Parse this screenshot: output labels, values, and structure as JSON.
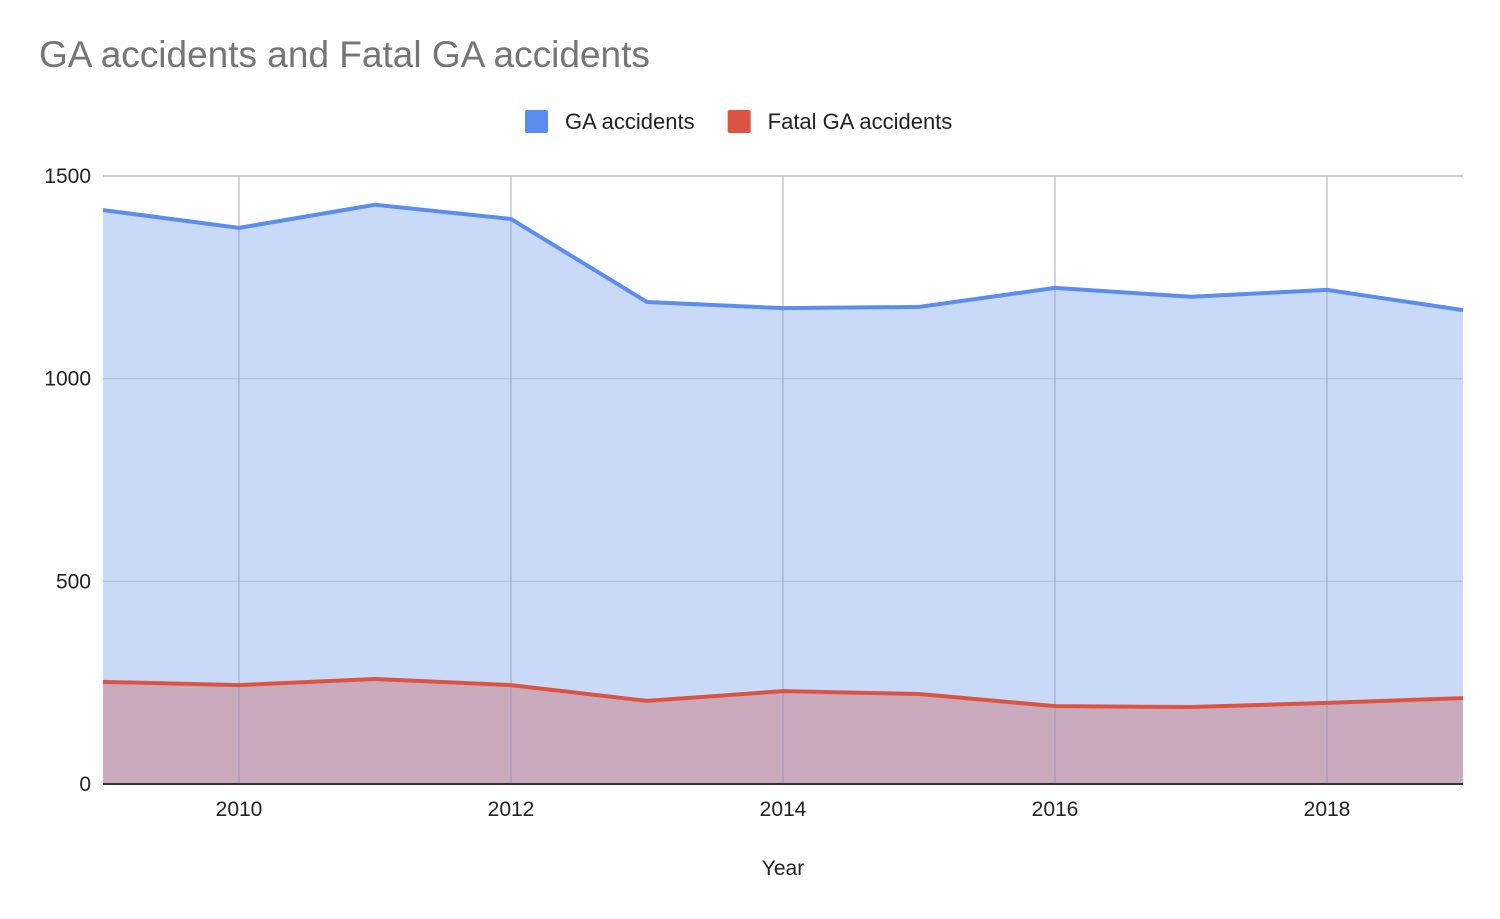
{
  "chart_data": {
    "type": "area",
    "title": "GA accidents and Fatal GA accidents",
    "xlabel": "Year",
    "ylabel": "",
    "x": [
      2009,
      2010,
      2011,
      2012,
      2013,
      2014,
      2015,
      2016,
      2017,
      2018,
      2019
    ],
    "xlim": [
      2009,
      2019
    ],
    "ylim": [
      0,
      1500
    ],
    "xticks": [
      "2010",
      "2012",
      "2014",
      "2016",
      "2018"
    ],
    "yticks": [
      "0",
      "500",
      "1000",
      "1500"
    ],
    "grid": true,
    "legend_position": "top",
    "series": [
      {
        "name": "GA accidents",
        "color": "#5b8def",
        "fill": "#c9daf8",
        "values": [
          1416,
          1372,
          1429,
          1394,
          1189,
          1174,
          1177,
          1224,
          1202,
          1219,
          1169
        ]
      },
      {
        "name": "Fatal GA accidents",
        "color": "#db5443",
        "fill": "#caaabd",
        "values": [
          252,
          244,
          259,
          244,
          205,
          229,
          222,
          192,
          190,
          200,
          212
        ]
      }
    ]
  }
}
